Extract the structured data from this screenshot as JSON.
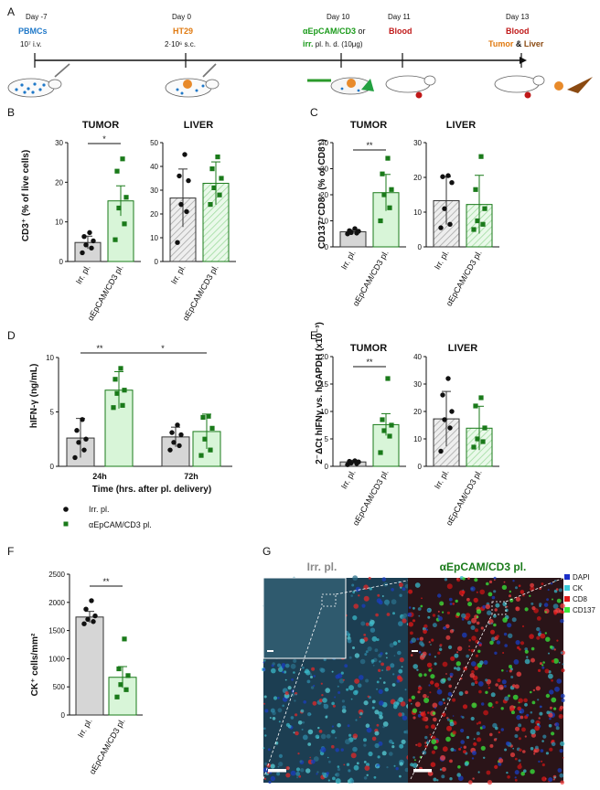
{
  "colors": {
    "green_dark": "#1a7a1a",
    "green_fill": "#d8f5d8",
    "grey_fill": "#d6d6d6",
    "pbmc_blue": "#1f78c8",
    "ht29_orange": "#e07a10",
    "blood_red": "#c01818",
    "liver_brown": "#8b4a12",
    "dapi": "#1a2ec8",
    "ck": "#3ac8d8",
    "cd8": "#e01818",
    "cd137": "#3ae83a"
  },
  "panels": {
    "A": {
      "label": "A",
      "events": [
        {
          "day": "Day -7",
          "line1": "PBMCs",
          "line2": "10⁷ i.v."
        },
        {
          "day": "Day 0",
          "line1": "HT29",
          "line2": "2·10⁶ s.c."
        },
        {
          "day": "Day 10",
          "line1a": "αEpCAM/CD3",
          "line1b": " or",
          "line2a": "irr.",
          "line2b": " pl. h. d. (10μg)"
        },
        {
          "day": "Day 11",
          "line1": "Blood"
        },
        {
          "day": "Day 13",
          "line1": "Blood",
          "line2a": "Tumor",
          "line2b": " & ",
          "line2c": "Liver"
        }
      ]
    },
    "B": {
      "label": "B",
      "ylabel": "CD3⁺ (% of live cells)",
      "sig": "*",
      "left_title": "TUMOR",
      "right_title": "LIVER",
      "cat1": "Irr. pl.",
      "cat2": "αEpCAM/CD3 pl.",
      "left_ticks": [
        "0",
        "10",
        "20",
        "30"
      ],
      "right_ticks": [
        "0",
        "10",
        "20",
        "30",
        "40",
        "50"
      ]
    },
    "C": {
      "label": "C",
      "ylabel": "CD137⁺CD8⁺ (% of CD8⁺)",
      "sig": "**",
      "left_title": "TUMOR",
      "right_title": "LIVER",
      "cat1": "Irr. pl.",
      "cat2": "αEpCAM/CD3 pl.",
      "left_ticks": [
        "0",
        "10",
        "20",
        "30",
        "40"
      ],
      "right_ticks": [
        "0",
        "10",
        "20",
        "30"
      ]
    },
    "D": {
      "label": "D",
      "ylabel": "hIFN-γ (ng/mL)",
      "xlabel": "Time (hrs. after pl. delivery)",
      "sig1": "**",
      "sig2": "*",
      "cat1": "24h",
      "cat2": "72h",
      "ticks": [
        "0",
        "5",
        "10"
      ],
      "legend1": "Irr. pl.",
      "legend2": "αEpCAM/CD3 pl."
    },
    "E": {
      "label": "E",
      "ylabel": "2⁻ΔCt hIFNγ vs. hGAPDH (x10⁻³)",
      "sig": "**",
      "left_title": "TUMOR",
      "right_title": "LIVER",
      "cat1": "Irr. pl.",
      "cat2": "αEpCAM/CD3 pl.",
      "left_ticks": [
        "0",
        "5",
        "10",
        "15",
        "20"
      ],
      "right_ticks": [
        "0",
        "10",
        "20",
        "30",
        "40"
      ]
    },
    "F": {
      "label": "F",
      "ylabel": "CK⁺ cells/mm²",
      "sig": "**",
      "cat1": "Irr. pl.",
      "cat2": "αEpCAM/CD3 pl.",
      "ticks": [
        "0",
        "500",
        "1000",
        "1500",
        "2000",
        "2500"
      ]
    },
    "G": {
      "label": "G",
      "title_left": "Irr. pl.",
      "title_right": "αEpCAM/CD3 pl.",
      "legend": [
        "DAPI",
        "CK",
        "CD8",
        "CD137"
      ]
    }
  },
  "chart_data": [
    {
      "id": "B-tumor",
      "type": "bar",
      "title": "TUMOR",
      "ylabel": "CD3⁺ (% of live cells)",
      "categories": [
        "Irr. pl.",
        "αEpCAM/CD3 pl."
      ],
      "ylim": [
        0,
        30
      ],
      "values": [
        4.8,
        15.3
      ],
      "errors": [
        1.6,
        3.8
      ],
      "points": [
        [
          2.2,
          3.4,
          4.2,
          5.2,
          6.3,
          7.3
        ],
        [
          5.5,
          9.5,
          13.5,
          16.2,
          22.8,
          25.9
        ]
      ],
      "significance": "*"
    },
    {
      "id": "B-liver",
      "type": "bar",
      "title": "LIVER",
      "categories": [
        "Irr. pl.",
        "αEpCAM/CD3 pl."
      ],
      "ylim": [
        0,
        50
      ],
      "values": [
        26.7,
        32.9
      ],
      "errors": [
        12.2,
        9.0
      ],
      "points": [
        [
          8.0,
          21.0,
          24.0,
          34.0,
          36.0,
          45.0
        ],
        [
          24.0,
          28.0,
          31.0,
          35.0,
          39.0,
          44.0
        ]
      ]
    },
    {
      "id": "C-tumor",
      "type": "bar",
      "title": "TUMOR",
      "ylabel": "CD137⁺CD8⁺ (% of CD8⁺)",
      "categories": [
        "Irr. pl.",
        "αEpCAM/CD3 pl."
      ],
      "ylim": [
        0,
        40
      ],
      "values": [
        5.8,
        20.8
      ],
      "errors": [
        0.8,
        7.0
      ],
      "points": [
        [
          5.0,
          5.3,
          5.5,
          6.0,
          6.2,
          7.0
        ],
        [
          10.0,
          15.0,
          20.0,
          22.0,
          28.0,
          34.0
        ]
      ],
      "significance": "**"
    },
    {
      "id": "C-liver",
      "type": "bar",
      "title": "LIVER",
      "categories": [
        "Irr. pl.",
        "αEpCAM/CD3 pl."
      ],
      "ylim": [
        0,
        30
      ],
      "values": [
        13.3,
        12.2
      ],
      "errors": [
        6.9,
        8.4
      ],
      "points": [
        [
          5.5,
          6.5,
          11.0,
          18.5,
          20.2,
          20.5
        ],
        [
          5.0,
          6.5,
          7.5,
          11.0,
          16.5,
          26.0
        ]
      ]
    },
    {
      "id": "D",
      "type": "bar",
      "ylabel": "hIFN-γ (ng/mL)",
      "xlabel": "Time (hrs. after pl. delivery)",
      "categories": [
        "24h",
        "72h"
      ],
      "ylim": [
        0,
        10
      ],
      "series": [
        {
          "name": "Irr. pl.",
          "values": [
            2.6,
            2.7
          ],
          "errors": [
            1.8,
            0.9
          ],
          "points": [
            [
              0.8,
              1.5,
              2.2,
              2.5,
              3.3,
              4.3
            ],
            [
              1.5,
              1.9,
              2.2,
              2.9,
              3.1,
              3.8
            ]
          ]
        },
        {
          "name": "αEpCAM/CD3 pl.",
          "values": [
            7.0,
            3.2
          ],
          "errors": [
            1.7,
            1.6
          ],
          "points": [
            [
              5.4,
              5.6,
              6.7,
              7.0,
              8.0,
              9.0
            ],
            [
              1.0,
              1.5,
              2.5,
              3.5,
              4.5,
              4.6
            ]
          ]
        }
      ],
      "significance": [
        "** (24h Irr. vs αEpCAM/CD3)",
        "* (24h vs 72h αEpCAM/CD3)"
      ]
    },
    {
      "id": "E-tumor",
      "type": "bar",
      "title": "TUMOR",
      "ylabel": "2⁻ΔCt hIFNγ vs. hGAPDH (x10⁻³)",
      "categories": [
        "Irr. pl.",
        "αEpCAM/CD3 pl."
      ],
      "ylim": [
        0,
        20
      ],
      "values": [
        0.8,
        7.6
      ],
      "errors": [
        0.3,
        2.0
      ],
      "points": [
        [
          0.3,
          0.5,
          0.6,
          0.8,
          0.9,
          1.0
        ],
        [
          2.5,
          5.5,
          6.5,
          7.5,
          8.5,
          16.0
        ]
      ],
      "significance": "**"
    },
    {
      "id": "E-liver",
      "type": "bar",
      "title": "LIVER",
      "categories": [
        "Irr. pl.",
        "αEpCAM/CD3 pl."
      ],
      "ylim": [
        0,
        40
      ],
      "values": [
        17.3,
        13.9
      ],
      "errors": [
        10.0,
        8.0
      ],
      "points": [
        [
          5.5,
          14.0,
          17.0,
          20.0,
          26.0,
          32.0
        ],
        [
          7.0,
          9.0,
          10.0,
          14.0,
          22.0,
          25.0
        ]
      ]
    },
    {
      "id": "F",
      "type": "bar",
      "ylabel": "CK⁺ cells/mm²",
      "categories": [
        "Irr. pl.",
        "αEpCAM/CD3 pl."
      ],
      "ylim": [
        0,
        2500
      ],
      "values": [
        1740,
        670
      ],
      "errors": [
        100,
        190
      ],
      "points": [
        [
          1620,
          1660,
          1700,
          1760,
          1880,
          2030
        ],
        [
          320,
          450,
          540,
          700,
          820,
          1350
        ]
      ],
      "significance": "**"
    }
  ]
}
